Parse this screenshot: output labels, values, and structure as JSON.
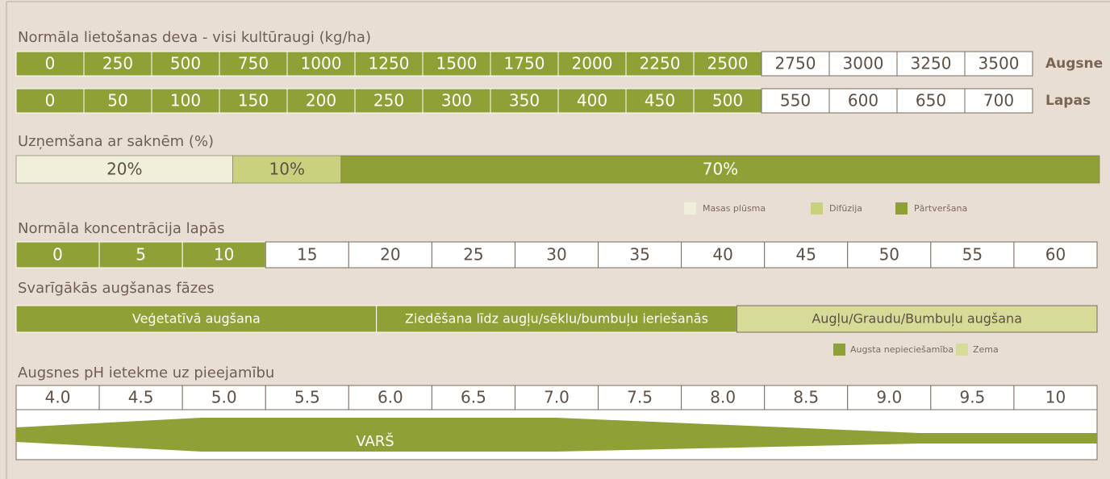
{
  "highlight_color": "#8fa036",
  "dose": {
    "title": "Normāla lietošanas deva - visi kultūraugi (kg/ha)",
    "rows": [
      {
        "cells": [
          "0",
          "250",
          "500",
          "750",
          "1000",
          "1250",
          "1500",
          "1750",
          "2000",
          "2250",
          "2500",
          "2750",
          "3000",
          "3250",
          "3500"
        ],
        "label": "Augsne",
        "highlighted": 11
      },
      {
        "cells": [
          "0",
          "50",
          "100",
          "150",
          "200",
          "250",
          "300",
          "350",
          "400",
          "450",
          "500",
          "550",
          "600",
          "650",
          "700"
        ],
        "label": "Lapas",
        "highlighted": 11
      }
    ]
  },
  "uptake": {
    "title": "Uzņemšana ar saknēm (%)",
    "segments": [
      {
        "name": "Masas plūsma",
        "value": 20,
        "value_label": "20%",
        "color": "#f0efd9"
      },
      {
        "name": "Difūzija",
        "value": 10,
        "value_label": "10%",
        "color": "#c9d07e"
      },
      {
        "name": "Pārtveršana",
        "value": 70,
        "value_label": "70%",
        "color": "#8fa036"
      }
    ]
  },
  "concentration": {
    "title": "Normāla koncentrācija lapās",
    "cells": [
      "0",
      "5",
      "10",
      "15",
      "20",
      "25",
      "30",
      "35",
      "40",
      "45",
      "50",
      "55",
      "60"
    ],
    "highlighted": 3
  },
  "phases": {
    "title": "Svarīgākās augšanas fāzes",
    "items": [
      {
        "label": "Veģetatīvā augšana",
        "color": "#8fa036"
      },
      {
        "label": "Ziedēšana līdz augļu/sēklu/bumbuļu ieriešanās",
        "color": "#8fa036"
      },
      {
        "label": "Augļu/Graudu/Bumbuļu augšana",
        "color": "#d6dc97"
      }
    ],
    "legend": [
      {
        "name": "Augsta nepieciešamība",
        "color": "#8fa036"
      },
      {
        "name": "Zema",
        "color": "#d6dc97"
      }
    ]
  },
  "ph": {
    "title": "Augsnes pH ietekme uz pieejamību",
    "cells": [
      "4.0",
      "4.5",
      "5.0",
      "5.5",
      "6.0",
      "6.5",
      "7.0",
      "7.5",
      "8.0",
      "8.5",
      "9.0",
      "9.5",
      "10"
    ],
    "nutrient": "VARŠ"
  }
}
